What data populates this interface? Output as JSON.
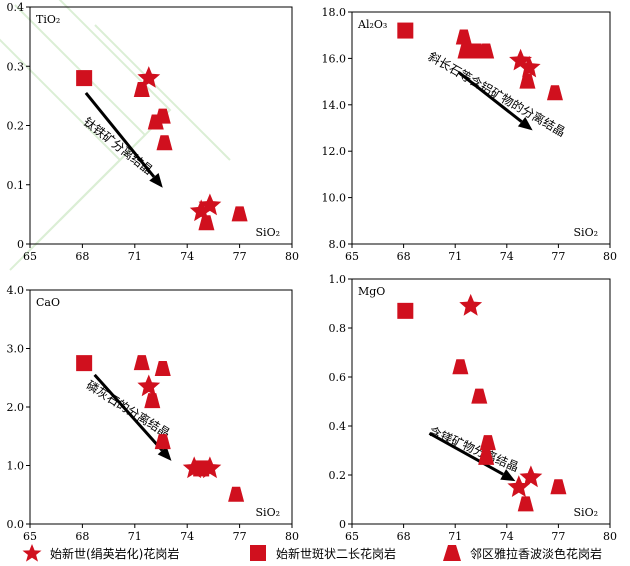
{
  "colors": {
    "marker": "#d0101e",
    "axis": "#000000",
    "arrow": "#000000"
  },
  "chart_data": [
    {
      "type": "scatter",
      "ylabel": "TiO₂",
      "xlabel": "SiO₂",
      "xlim": [
        65,
        80
      ],
      "ylim": [
        0,
        0.4
      ],
      "x_ticks": [
        "65",
        "68",
        "71",
        "74",
        "77",
        "80"
      ],
      "y_ticks": [
        "0",
        "0.1",
        "0.2",
        "0.3",
        "0.4"
      ],
      "annotation": "钛铁矿分离结晶",
      "series": [
        {
          "marker": "star",
          "x": [
            71.8,
            74.8,
            75.3
          ],
          "y": [
            0.28,
            0.055,
            0.065
          ]
        },
        {
          "marker": "square",
          "x": [
            68.1
          ],
          "y": [
            0.28
          ]
        },
        {
          "marker": "triangle",
          "x": [
            71.4,
            72.2,
            72.6,
            72.7,
            75.1,
            77.0
          ],
          "y": [
            0.26,
            0.205,
            0.215,
            0.17,
            0.035,
            0.05
          ]
        }
      ]
    },
    {
      "type": "scatter",
      "ylabel": "Al₂O₃",
      "xlabel": "SiO₂",
      "xlim": [
        65,
        80
      ],
      "ylim": [
        8.0,
        18.0
      ],
      "x_ticks": [
        "65",
        "68",
        "71",
        "74",
        "77",
        "80"
      ],
      "y_ticks": [
        "8.0",
        "10.0",
        "12.0",
        "14.0",
        "16.0",
        "18.0"
      ],
      "annotation": "斜长石等含铝矿物的分离结晶",
      "series": [
        {
          "marker": "star",
          "x": [
            74.8,
            75.3
          ],
          "y": [
            15.9,
            15.6
          ]
        },
        {
          "marker": "square",
          "x": [
            68.1
          ],
          "y": [
            17.2
          ]
        },
        {
          "marker": "triangle",
          "x": [
            71.5,
            71.6,
            72.0,
            72.3,
            72.8,
            75.2,
            76.8
          ],
          "y": [
            16.9,
            16.3,
            16.3,
            16.3,
            16.3,
            15.0,
            14.5
          ]
        }
      ]
    },
    {
      "type": "scatter",
      "ylabel": "CaO",
      "xlabel": "SiO₂",
      "xlim": [
        65,
        80
      ],
      "ylim": [
        0,
        4.0
      ],
      "x_ticks": [
        "65",
        "68",
        "71",
        "74",
        "77",
        "80"
      ],
      "y_ticks": [
        "0.0",
        "1.0",
        "2.0",
        "3.0",
        "4.0"
      ],
      "annotation": "磷灰石的分离结晶",
      "series": [
        {
          "marker": "star",
          "x": [
            71.8,
            74.4,
            75.3
          ],
          "y": [
            2.35,
            0.95,
            0.95
          ]
        },
        {
          "marker": "square",
          "x": [
            68.1,
            74.8
          ],
          "y": [
            2.75,
            0.95
          ]
        },
        {
          "marker": "triangle",
          "x": [
            71.4,
            72.0,
            72.6,
            72.6,
            76.8
          ],
          "y": [
            2.75,
            2.1,
            2.65,
            1.4,
            0.5
          ]
        }
      ]
    },
    {
      "type": "scatter",
      "ylabel": "MgO",
      "xlabel": "SiO₂",
      "xlim": [
        65,
        80
      ],
      "ylim": [
        0,
        1.0
      ],
      "x_ticks": [
        "65",
        "68",
        "71",
        "74",
        "77",
        "80"
      ],
      "y_ticks": [
        "0",
        "0.2",
        "0.4",
        "0.6",
        "0.8",
        "1.0"
      ],
      "annotation": "含镁矿物分离结晶",
      "series": [
        {
          "marker": "star",
          "x": [
            71.9,
            74.7,
            75.4
          ],
          "y": [
            0.89,
            0.15,
            0.19
          ]
        },
        {
          "marker": "square",
          "x": [
            68.1
          ],
          "y": [
            0.87
          ]
        },
        {
          "marker": "triangle",
          "x": [
            71.3,
            72.4,
            72.9,
            72.8,
            75.1,
            77.0
          ],
          "y": [
            0.64,
            0.52,
            0.33,
            0.27,
            0.08,
            0.15
          ]
        }
      ]
    }
  ],
  "legend": [
    {
      "marker": "star",
      "label": "始新世(绢英岩化)花岗岩"
    },
    {
      "marker": "square",
      "label": "始新世斑状二长花岗岩"
    },
    {
      "marker": "triangle",
      "label": "邻区雅拉香波淡色花岗岩"
    }
  ]
}
